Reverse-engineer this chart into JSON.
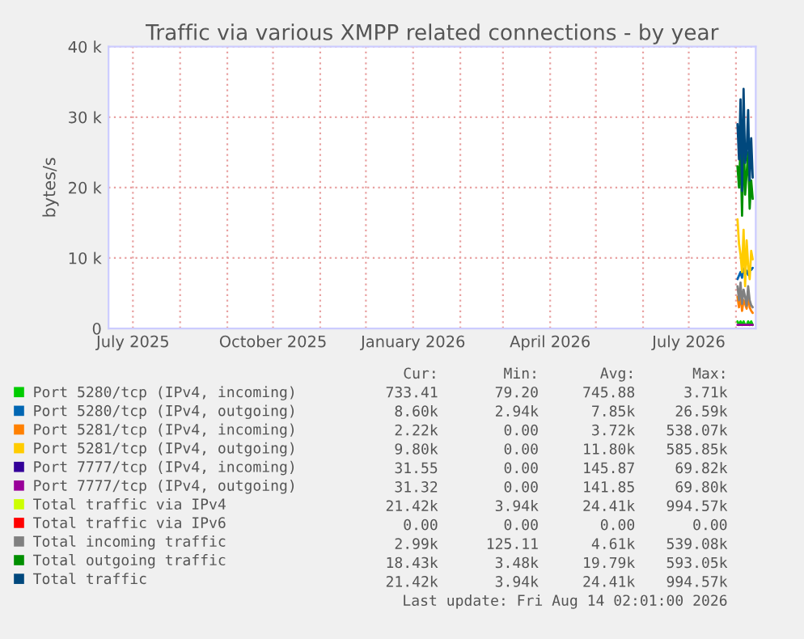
{
  "chart_data": {
    "type": "line",
    "title": "Traffic via various XMPP related connections - by year",
    "ylabel": "bytes/s",
    "x": [
      "2026-08-02",
      "2026-08-03",
      "2026-08-04",
      "2026-08-05",
      "2026-08-06",
      "2026-08-07",
      "2026-08-08",
      "2026-08-09",
      "2026-08-10",
      "2026-08-11",
      "2026-08-12"
    ],
    "series": [
      {
        "name": "Port 5280/tcp (IPv4, incoming)",
        "color": "#00cc00",
        "values": [
          1000,
          500,
          1000,
          500,
          1000,
          500,
          500,
          1000,
          500,
          1000,
          500
        ]
      },
      {
        "name": "Port 5280/tcp (IPv4, outgoing)",
        "color": "#0066b3",
        "values": [
          7000,
          7500,
          8000,
          7200,
          8500,
          7800,
          8200,
          7600,
          8800,
          8300,
          8600
        ]
      },
      {
        "name": "Port 5281/tcp (IPv4, incoming)",
        "color": "#ff8000",
        "values": [
          4500,
          3000,
          5000,
          2500,
          4000,
          3500,
          2800,
          4800,
          3000,
          2500,
          2200
        ]
      },
      {
        "name": "Port 5281/tcp (IPv4, outgoing)",
        "color": "#ffcc00",
        "values": [
          15500,
          12000,
          10500,
          8000,
          14000,
          6000,
          12500,
          9000,
          7000,
          11000,
          9800
        ]
      },
      {
        "name": "Port 7777/tcp (IPv4, incoming)",
        "color": "#330099",
        "values": [
          null,
          null,
          null,
          null,
          null,
          null,
          null,
          null,
          null,
          null,
          null
        ]
      },
      {
        "name": "Port 7777/tcp (IPv4, outgoing)",
        "color": "#990099",
        "values": [
          500,
          500,
          500,
          500,
          500,
          500,
          500,
          500,
          500,
          500,
          500
        ]
      },
      {
        "name": "Total traffic via IPv4",
        "color": "#ccff00",
        "values": [
          null,
          null,
          null,
          null,
          null,
          null,
          null,
          null,
          null,
          null,
          null
        ]
      },
      {
        "name": "Total traffic via IPv6",
        "color": "#ff0000",
        "values": [
          null,
          null,
          null,
          null,
          null,
          null,
          null,
          null,
          null,
          null,
          null
        ]
      },
      {
        "name": "Total incoming traffic",
        "color": "#808080",
        "values": [
          6000,
          4000,
          6500,
          3500,
          5500,
          4500,
          3200,
          6000,
          4000,
          3300,
          3000
        ]
      },
      {
        "name": "Total outgoing traffic",
        "color": "#008f00",
        "values": [
          23000,
          20000,
          26000,
          16000,
          28000,
          19000,
          22000,
          25000,
          17000,
          21000,
          18400
        ]
      },
      {
        "name": "Total traffic",
        "color": "#00487d",
        "values": [
          29000,
          24000,
          32500,
          19500,
          34000,
          23500,
          25000,
          31000,
          21000,
          27000,
          21400
        ]
      }
    ],
    "xlim": [
      "2025-06-15",
      "2026-08-14"
    ],
    "xticks": [
      {
        "value": "2025-07-01",
        "label": "July 2025"
      },
      {
        "value": "2025-08-01",
        "label": null
      },
      {
        "value": "2025-09-01",
        "label": null
      },
      {
        "value": "2025-10-01",
        "label": "October 2025"
      },
      {
        "value": "2025-11-01",
        "label": null
      },
      {
        "value": "2025-12-01",
        "label": null
      },
      {
        "value": "2026-01-01",
        "label": "January 2026"
      },
      {
        "value": "2026-02-01",
        "label": null
      },
      {
        "value": "2026-03-01",
        "label": null
      },
      {
        "value": "2026-04-01",
        "label": "April 2026"
      },
      {
        "value": "2026-05-01",
        "label": null
      },
      {
        "value": "2026-06-01",
        "label": null
      },
      {
        "value": "2026-07-01",
        "label": "July 2026"
      },
      {
        "value": "2026-08-01",
        "label": null
      }
    ],
    "ylim": [
      0,
      40000
    ],
    "yticks": [
      {
        "value": 0,
        "label": "0"
      },
      {
        "value": 10000,
        "label": "10 k"
      },
      {
        "value": 20000,
        "label": "20 k"
      },
      {
        "value": 30000,
        "label": "30 k"
      },
      {
        "value": 40000,
        "label": "40 k"
      }
    ],
    "grid": true,
    "legend": "bottom",
    "annotations": [
      "Cur:",
      "Min:",
      "Avg:",
      "Max:",
      "733.41",
      "79.20",
      "745.88",
      "3.71k",
      "8.60k",
      "2.94k",
      "7.85k",
      "26.59k",
      "2.22k",
      "0.00",
      "3.72k",
      "538.07k",
      "9.80k",
      "0.00",
      "11.80k",
      "585.85k",
      "31.55",
      "0.00",
      "145.87",
      "69.82k",
      "31.32",
      "0.00",
      "141.85",
      "69.80k",
      "21.42k",
      "3.94k",
      "24.41k",
      "994.57k",
      "0.00",
      "0.00",
      "0.00",
      "0.00",
      "2.99k",
      "125.11",
      "4.61k",
      "539.08k",
      "18.43k",
      "3.48k",
      "19.79k",
      "593.05k",
      "21.42k",
      "3.94k",
      "24.41k",
      "994.57k",
      "Last update: Fri Aug 14 02:01:00 2026"
    ]
  }
}
